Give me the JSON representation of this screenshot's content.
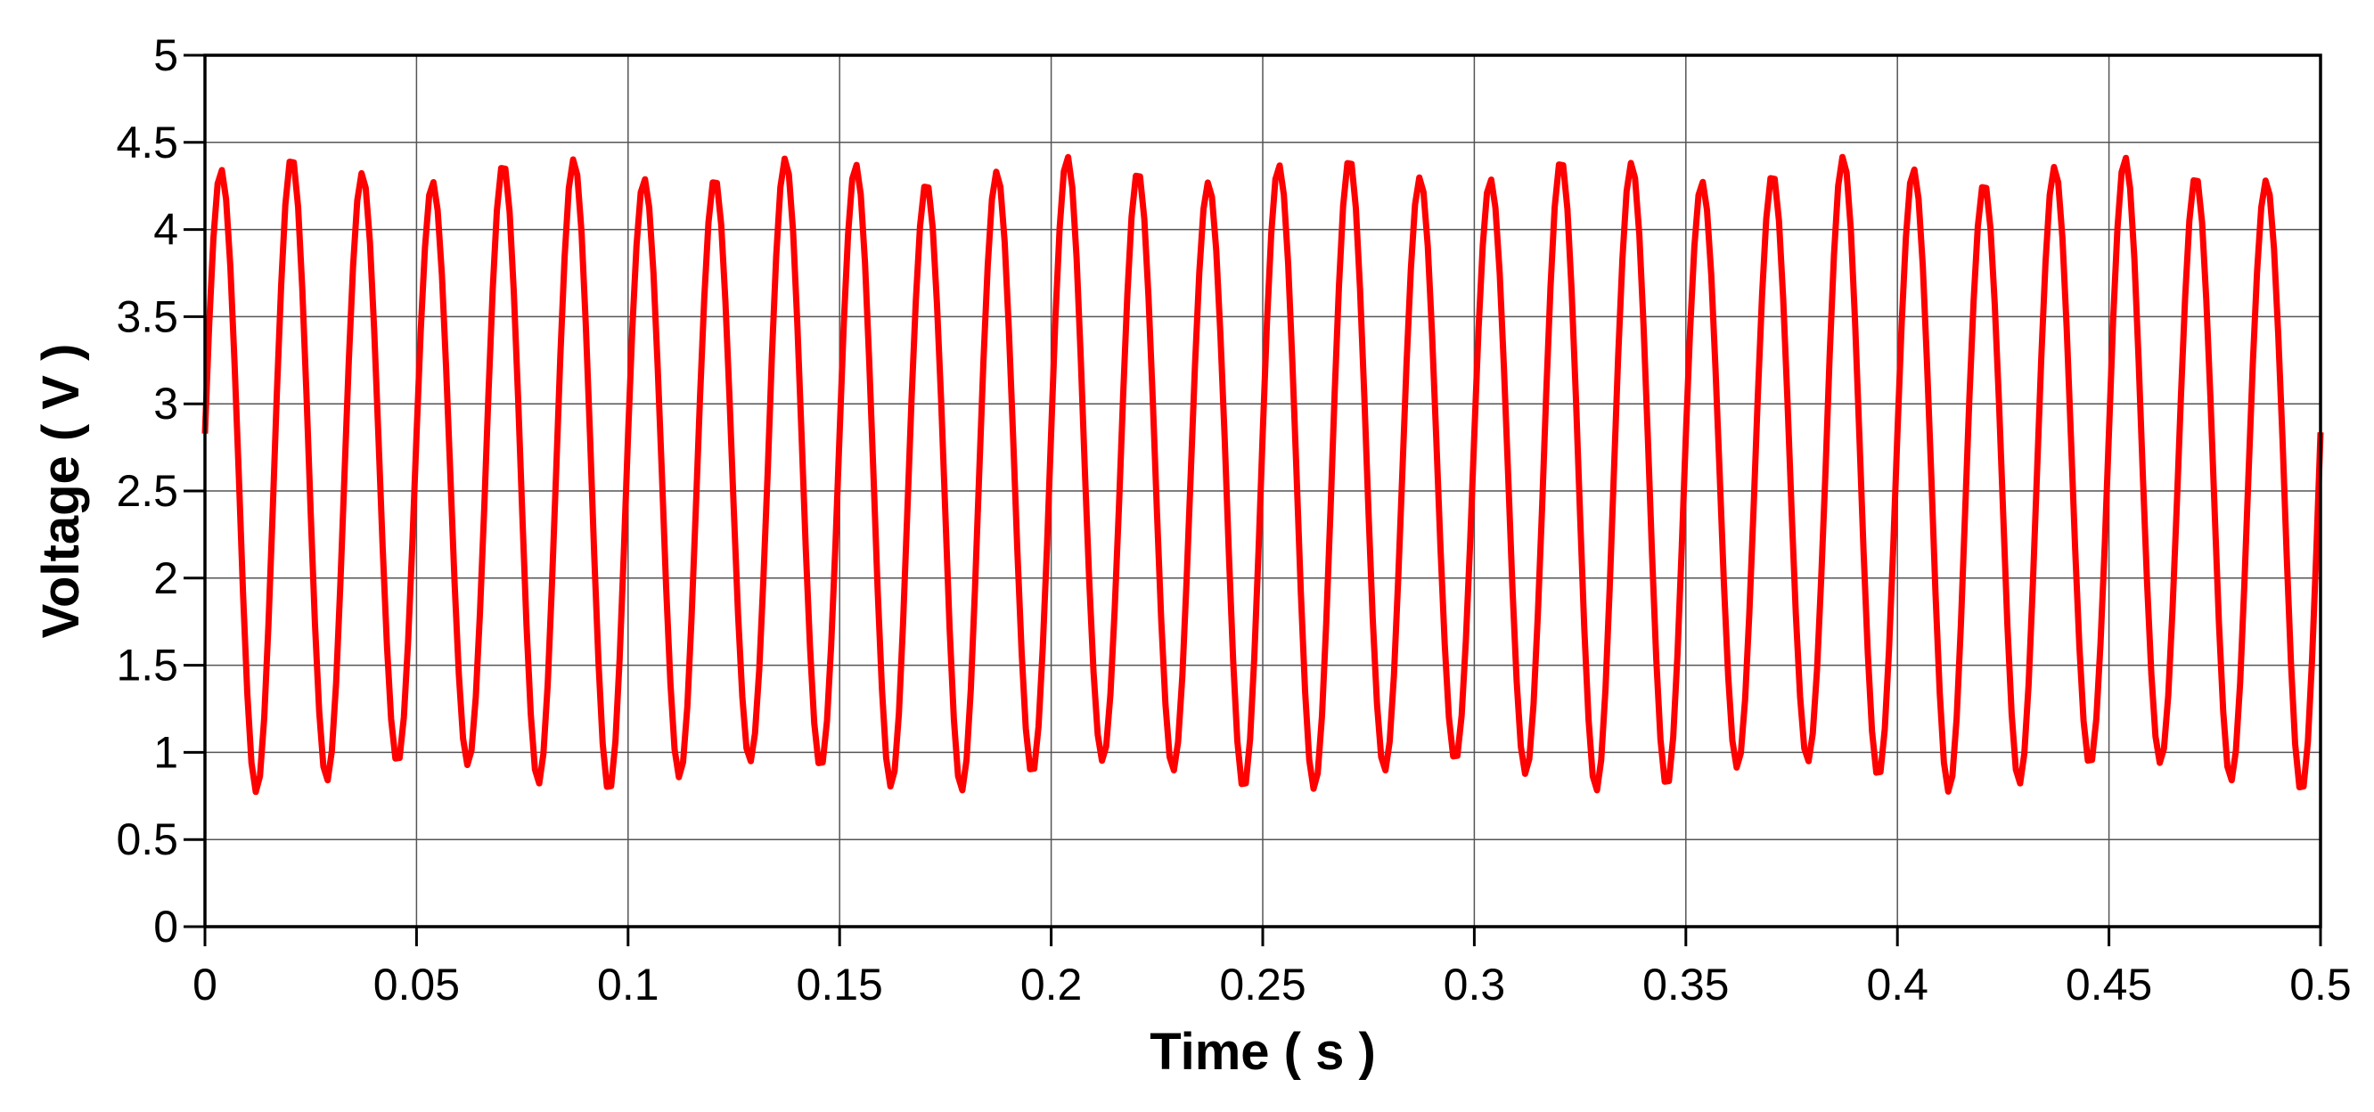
{
  "chart_data": {
    "type": "line",
    "title": "",
    "xlabel": "Time ( s )",
    "ylabel": "Voltage ( V )",
    "xlim": [
      0,
      0.5
    ],
    "ylim": [
      0,
      5
    ],
    "x_ticks": [
      "0",
      "0.05",
      "0.1",
      "0.15",
      "0.2",
      "0.25",
      "0.3",
      "0.35",
      "0.4",
      "0.45",
      "0.5"
    ],
    "y_ticks": [
      "0",
      "0.5",
      "1",
      "1.5",
      "2",
      "2.5",
      "3",
      "3.5",
      "4",
      "4.5",
      "5"
    ],
    "grid": true,
    "series": [
      {
        "color": "#ff0000",
        "signal": "sine",
        "frequency_hz": 60,
        "offset_v": 2.6,
        "amplitude_v": 1.75,
        "start_value_v": 2.83,
        "peak_min_v": 4.27,
        "peak_max_v": 4.42,
        "trough_min_v": 0.77,
        "trough_max_v": 0.95,
        "sample_interval_s": 0.001
      }
    ]
  }
}
